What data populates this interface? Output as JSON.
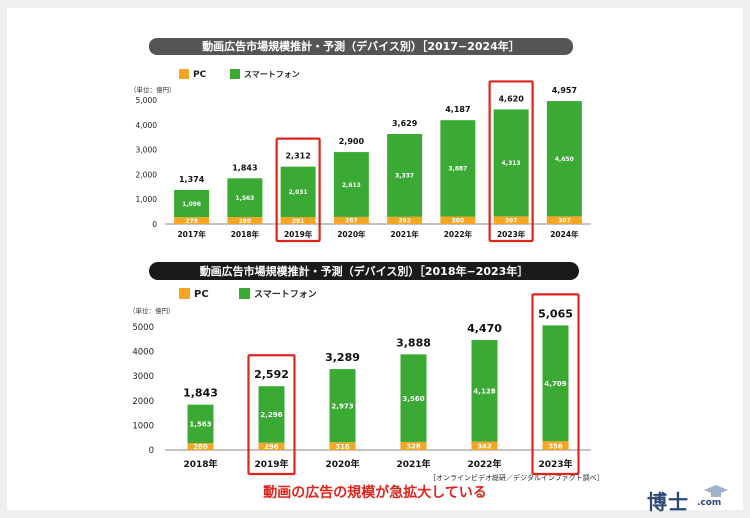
{
  "source_note": "［オンラインビデオ総研／デジタルインファクト調べ］",
  "caption": "動画の広告の規模が急拡大している",
  "logo": {
    "text": "博士",
    "suffix": ".com"
  },
  "colors": {
    "pc": "#f5a623",
    "smartphone": "#3aaa35",
    "highlight": "#e0241c",
    "header_bg": "#1a1a1a",
    "header_bg_top": "#555555"
  },
  "chart_data": [
    {
      "type": "bar",
      "stacked": true,
      "title": "動画広告市場規模推計・予測（デバイス別）［2017−2024年］",
      "unit_label": "（単位：億円）",
      "categories": [
        "2017年",
        "2018年",
        "2019年",
        "2020年",
        "2021年",
        "2022年",
        "2023年",
        "2024年"
      ],
      "series": [
        {
          "name": "PC",
          "values": [
            278,
            280,
            281,
            287,
            292,
            300,
            307,
            307
          ]
        },
        {
          "name": "スマートフォン",
          "values": [
            1096,
            1563,
            2031,
            2613,
            3337,
            3887,
            4313,
            4650
          ]
        }
      ],
      "totals": [
        "1,374",
        "1,843",
        "2,312",
        "2,900",
        "3,629",
        "4,187",
        "4,620",
        "4,957"
      ],
      "pc_labels": [
        "278",
        "280",
        "281",
        "287",
        "292",
        "300",
        "307",
        "307"
      ],
      "sp_labels": [
        "1,096",
        "1,563",
        "2,031",
        "2,613",
        "3,337",
        "3,887",
        "4,313",
        "4,650"
      ],
      "yticks": [
        "0",
        "1,000",
        "2,000",
        "3,000",
        "4,000",
        "5,000"
      ],
      "ylim": [
        0,
        5000
      ],
      "highlighted": [
        "2019年",
        "2023年"
      ],
      "legend": "top-left"
    },
    {
      "type": "bar",
      "stacked": true,
      "title": "動画広告市場規模推計・予測（デバイス別）［2018年−2023年］",
      "unit_label": "（単位：億円）",
      "categories": [
        "2018年",
        "2019年",
        "2020年",
        "2021年",
        "2022年",
        "2023年"
      ],
      "series": [
        {
          "name": "PC",
          "values": [
            280,
            296,
            316,
            328,
            342,
            356
          ]
        },
        {
          "name": "スマートフォン",
          "values": [
            1563,
            2296,
            2973,
            3560,
            4128,
            4709
          ]
        }
      ],
      "totals": [
        "1,843",
        "2,592",
        "3,289",
        "3,888",
        "4,470",
        "5,065"
      ],
      "pc_labels": [
        "280",
        "296",
        "316",
        "328",
        "342",
        "356"
      ],
      "sp_labels": [
        "1,563",
        "2,296",
        "2,973",
        "3,560",
        "4,128",
        "4,709"
      ],
      "yticks": [
        "0",
        "1000",
        "2000",
        "3000",
        "4000",
        "5000"
      ],
      "ylim": [
        0,
        5000
      ],
      "highlighted": [
        "2019年",
        "2023年"
      ],
      "legend": "top-left"
    }
  ]
}
